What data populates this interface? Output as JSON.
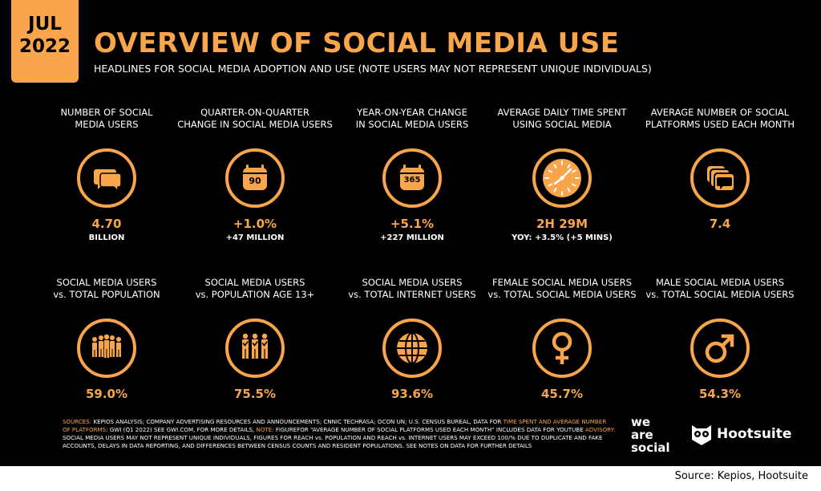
{
  "header": {
    "month": "JUL",
    "year": "2022",
    "title": "OVERVIEW OF SOCIAL MEDIA USE",
    "subtitle": "HEADLINES FOR SOCIAL MEDIA ADOPTION AND USE (NOTE USERS MAY NOT REPRESENT UNIQUE INDIVIDUALS)"
  },
  "colors": {
    "accent": "#F9A54B",
    "background": "#000000",
    "text": "#FFFFFF"
  },
  "stats_row1": [
    {
      "label_l1": "NUMBER OF SOCIAL",
      "label_l2": "MEDIA USERS",
      "icon": "speech-bubbles-icon",
      "value": "4.70",
      "sub": "BILLION"
    },
    {
      "label_l1": "QUARTER-ON-QUARTER",
      "label_l2": "CHANGE IN SOCIAL MEDIA USERS",
      "icon": "calendar-90-icon",
      "icon_text": "90",
      "value": "+1.0%",
      "sub": "+47 MILLION"
    },
    {
      "label_l1": "YEAR-ON-YEAR CHANGE",
      "label_l2": "IN SOCIAL MEDIA USERS",
      "icon": "calendar-365-icon",
      "icon_text": "365",
      "value": "+5.1%",
      "sub": "+227 MILLION"
    },
    {
      "label_l1": "AVERAGE DAILY TIME SPENT",
      "label_l2": "USING SOCIAL MEDIA",
      "icon": "clock-icon",
      "value": "2H 29M",
      "sub": "YOY: +3.5% (+5 MINS)"
    },
    {
      "label_l1": "AVERAGE NUMBER OF SOCIAL",
      "label_l2": "PLATFORMS USED EACH MONTH",
      "icon": "stacked-platforms-icon",
      "value": "7.4",
      "sub": ""
    }
  ],
  "stats_row2": [
    {
      "label_l1": "SOCIAL MEDIA USERS",
      "label_l2": "vs. TOTAL POPULATION",
      "icon": "population-icon",
      "value": "59.0%"
    },
    {
      "label_l1": "SOCIAL MEDIA USERS",
      "label_l2": "vs. POPULATION AGE 13+",
      "icon": "adults-checkmark-icon",
      "value": "75.5%"
    },
    {
      "label_l1": "SOCIAL MEDIA USERS",
      "label_l2": "vs. TOTAL INTERNET USERS",
      "icon": "globe-icon",
      "value": "93.6%"
    },
    {
      "label_l1": "FEMALE SOCIAL MEDIA USERS",
      "label_l2": "vs. TOTAL SOCIAL MEDIA USERS",
      "icon": "female-symbol-icon",
      "value": "45.7%"
    },
    {
      "label_l1": "MALE SOCIAL MEDIA USERS",
      "label_l2": "vs. TOTAL SOCIAL MEDIA USERS",
      "icon": "male-symbol-icon",
      "value": "54.3%"
    }
  ],
  "footer": {
    "p1": "SOURCES:",
    "p2": " KEPIOS ANALYSIS; COMPANY ADVERTISING RESOURCES AND ANNOUNCEMENTS; CNNIC TECHRASA; OCON UN; U.S. CENSUS BUREAL, DATA FOR ",
    "p3": "TIME SPENT AND AVERAGE NUMBER OF PLATFORMS",
    "p4": ": GWI (Q1 2022) SEE GWI.COM, FOR MORE DETAILS, ",
    "p5": "NOTE:",
    "p6": " FIGUREFOR “AVERAGE NUMBER OF SOCIAL PLATFORMS USED EACH MONTH” INCLUDES DATA FOR YOUTUBE ",
    "p7": "ADVISORY:",
    "p8": " SOCIAL MEDIA USERS MAY NOT REPRESENT UNIQUE INDIVIDUALS, FIGURES FOR REACH vs. POPULATION AND REACH vs. INTERNET USERS MAY EXCEED 100/% DUE TO DUPLICATE AND FAKE ACCOUNTS, DELAYS IN DATA REPORTING, AND DIFFERENCES BETWEEN CENSUS COUNTS AND RESIDENT POPULATIONS. SEE NOTES ON DATA FOR FURTHER DETAILS"
  },
  "brands": {
    "we": "we",
    "are": "are",
    "social": "social",
    "hootsuite": "Hootsuite"
  },
  "source_line": "Source: Kepios, Hootsuite"
}
